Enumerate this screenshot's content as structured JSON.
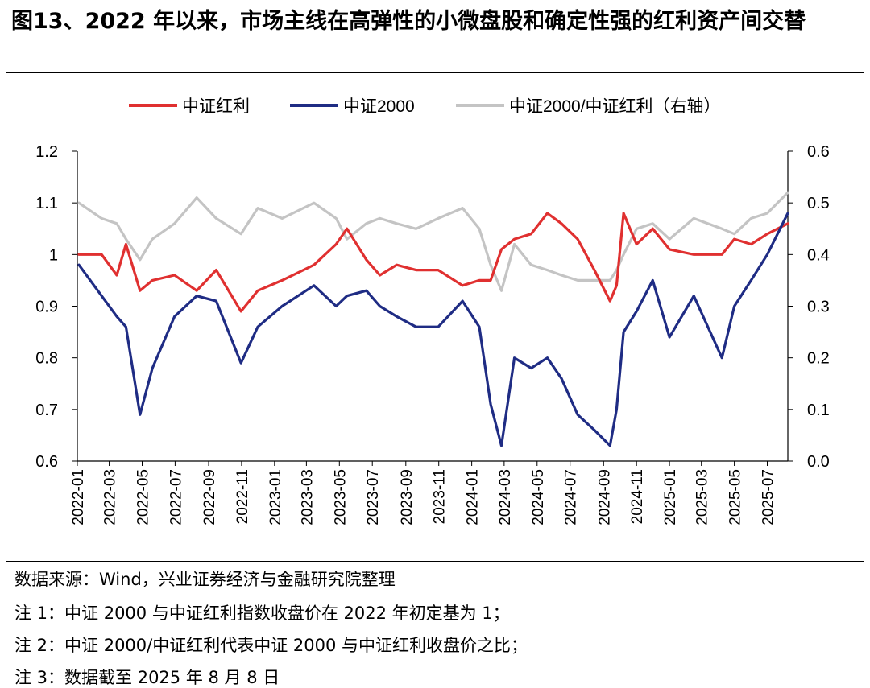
{
  "title": "图13、2022 年以来，市场主线在高弹性的小微盘股和确定性强的红利资产间交替",
  "notes": [
    "数据来源：Wind，兴业证券经济与金融研究院整理",
    "注 1：中证 2000 与中证红利指数收盘价在 2022 年初定基为 1；",
    "注 2：中证 2000/中证红利代表中证 2000 与中证红利收盘价之比；",
    "注 3：数据截至 2025 年 8 月 8 日"
  ],
  "chart_data": {
    "type": "line",
    "x_ticks": [
      "2022-01",
      "2022-03",
      "2022-05",
      "2022-07",
      "2022-09",
      "2022-11",
      "2023-01",
      "2023-03",
      "2023-05",
      "2023-07",
      "2023-09",
      "2023-11",
      "2024-01",
      "2024-03",
      "2024-05",
      "2024-07",
      "2024-09",
      "2024-11",
      "2025-01",
      "2025-03",
      "2025-05",
      "2025-07"
    ],
    "left_axis": {
      "ylim": [
        0.6,
        1.2
      ],
      "ticks": [
        "0.6",
        "0.7",
        "0.8",
        "0.9",
        "1",
        "1.1",
        "1.2"
      ]
    },
    "right_axis": {
      "ylim": [
        0.0,
        0.6
      ],
      "ticks": [
        "0.0",
        "0.1",
        "0.2",
        "0.3",
        "0.4",
        "0.5",
        "0.6"
      ]
    },
    "legend_position": "top",
    "series": [
      {
        "name": "中证红利",
        "axis": "left",
        "color": "#e03030",
        "x": [
          "2022-01-04",
          "2022-02-15",
          "2022-03-15",
          "2022-04-01",
          "2022-04-27",
          "2022-05-20",
          "2022-06-30",
          "2022-08-10",
          "2022-09-15",
          "2022-10-31",
          "2022-12-01",
          "2023-01-15",
          "2023-03-15",
          "2023-04-25",
          "2023-05-15",
          "2023-06-20",
          "2023-07-15",
          "2023-08-15",
          "2023-09-20",
          "2023-10-31",
          "2023-12-15",
          "2024-01-15",
          "2024-02-05",
          "2024-02-25",
          "2024-03-20",
          "2024-04-20",
          "2024-05-20",
          "2024-06-15",
          "2024-07-15",
          "2024-08-15",
          "2024-09-13",
          "2024-09-25",
          "2024-10-08",
          "2024-11-01",
          "2024-12-01",
          "2025-01-01",
          "2025-02-15",
          "2025-04-08",
          "2025-05-01",
          "2025-06-01",
          "2025-07-01",
          "2025-08-08"
        ],
        "values": [
          1.0,
          1.0,
          0.96,
          1.02,
          0.93,
          0.95,
          0.96,
          0.93,
          0.97,
          0.89,
          0.93,
          0.95,
          0.98,
          1.02,
          1.05,
          0.99,
          0.96,
          0.98,
          0.97,
          0.97,
          0.94,
          0.95,
          0.95,
          1.01,
          1.03,
          1.04,
          1.08,
          1.06,
          1.03,
          0.97,
          0.91,
          0.94,
          1.08,
          1.02,
          1.05,
          1.01,
          1.0,
          1.0,
          1.03,
          1.02,
          1.04,
          1.06
        ]
      },
      {
        "name": "中证2000",
        "axis": "left",
        "color": "#1f2c84",
        "x": [
          "2022-01-04",
          "2022-02-15",
          "2022-03-15",
          "2022-04-01",
          "2022-04-27",
          "2022-05-20",
          "2022-06-30",
          "2022-08-10",
          "2022-09-15",
          "2022-10-31",
          "2022-12-01",
          "2023-01-15",
          "2023-03-15",
          "2023-04-25",
          "2023-05-15",
          "2023-06-20",
          "2023-07-15",
          "2023-08-15",
          "2023-09-20",
          "2023-10-31",
          "2023-12-15",
          "2024-01-15",
          "2024-02-05",
          "2024-02-25",
          "2024-03-20",
          "2024-04-20",
          "2024-05-20",
          "2024-06-15",
          "2024-07-15",
          "2024-08-15",
          "2024-09-13",
          "2024-09-25",
          "2024-10-08",
          "2024-11-01",
          "2024-12-01",
          "2025-01-01",
          "2025-02-15",
          "2025-04-08",
          "2025-05-01",
          "2025-06-01",
          "2025-07-01",
          "2025-08-08"
        ],
        "values": [
          0.98,
          0.92,
          0.88,
          0.86,
          0.69,
          0.78,
          0.88,
          0.92,
          0.91,
          0.79,
          0.86,
          0.9,
          0.94,
          0.9,
          0.92,
          0.93,
          0.9,
          0.88,
          0.86,
          0.86,
          0.91,
          0.86,
          0.71,
          0.63,
          0.8,
          0.78,
          0.8,
          0.76,
          0.69,
          0.66,
          0.63,
          0.7,
          0.85,
          0.89,
          0.95,
          0.84,
          0.92,
          0.8,
          0.9,
          0.95,
          1.0,
          1.08
        ]
      },
      {
        "name": "中证2000/中证红利（右轴）",
        "axis": "right",
        "color": "#c4c4c4",
        "x": [
          "2022-01-04",
          "2022-02-15",
          "2022-03-15",
          "2022-04-01",
          "2022-04-27",
          "2022-05-20",
          "2022-06-30",
          "2022-08-10",
          "2022-09-15",
          "2022-10-31",
          "2022-12-01",
          "2023-01-15",
          "2023-03-15",
          "2023-04-25",
          "2023-05-15",
          "2023-06-20",
          "2023-07-15",
          "2023-08-15",
          "2023-09-20",
          "2023-10-31",
          "2023-12-15",
          "2024-01-15",
          "2024-02-05",
          "2024-02-25",
          "2024-03-20",
          "2024-04-20",
          "2024-05-20",
          "2024-06-15",
          "2024-07-15",
          "2024-08-15",
          "2024-09-13",
          "2024-09-25",
          "2024-10-08",
          "2024-11-01",
          "2024-12-01",
          "2025-01-01",
          "2025-02-15",
          "2025-04-08",
          "2025-05-01",
          "2025-06-01",
          "2025-07-01",
          "2025-08-08"
        ],
        "values": [
          0.5,
          0.47,
          0.46,
          0.43,
          0.39,
          0.43,
          0.46,
          0.51,
          0.47,
          0.44,
          0.49,
          0.47,
          0.5,
          0.47,
          0.43,
          0.46,
          0.47,
          0.46,
          0.45,
          0.47,
          0.49,
          0.45,
          0.38,
          0.33,
          0.42,
          0.38,
          0.37,
          0.36,
          0.35,
          0.35,
          0.35,
          0.37,
          0.4,
          0.45,
          0.46,
          0.43,
          0.47,
          0.45,
          0.44,
          0.47,
          0.48,
          0.52
        ]
      }
    ]
  }
}
